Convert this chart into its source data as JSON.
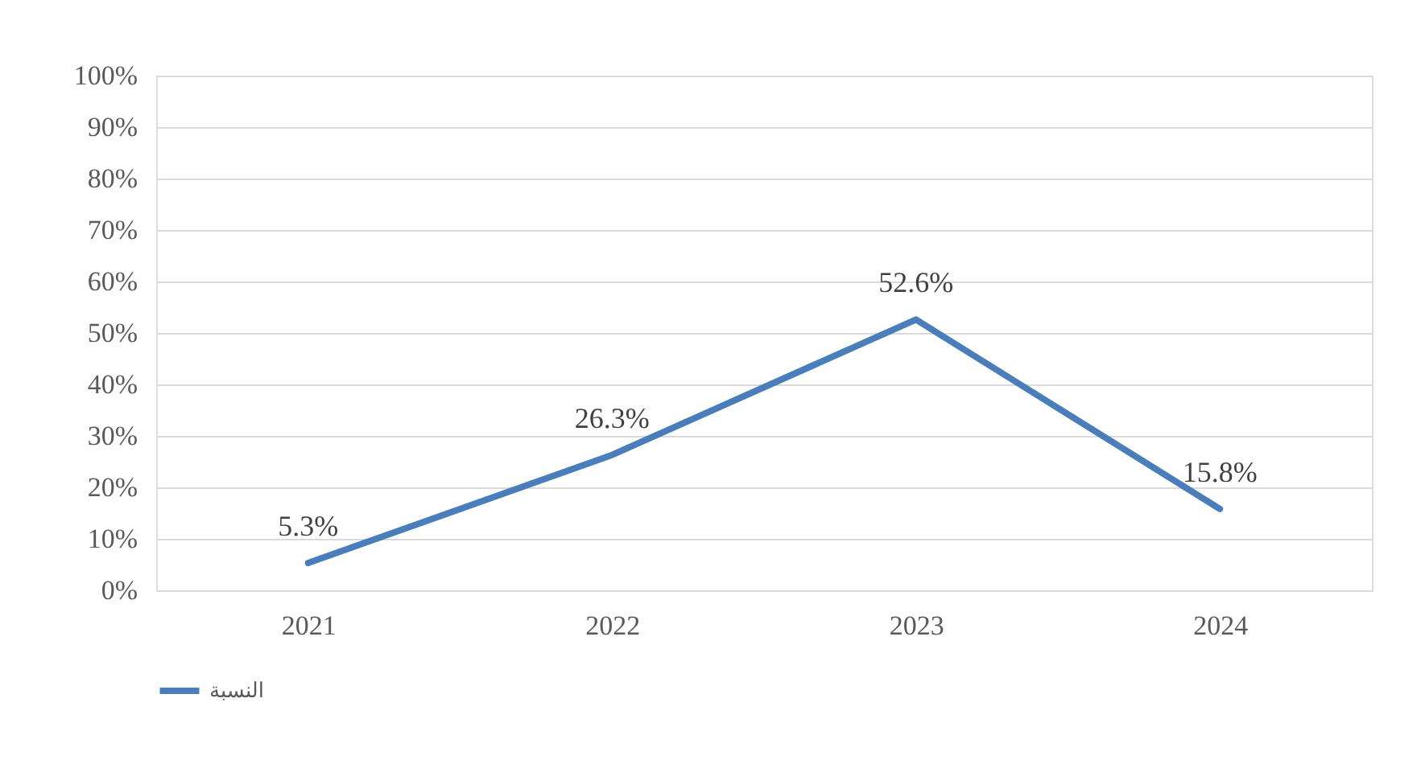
{
  "chart_data": {
    "type": "line",
    "categories": [
      "2021",
      "2022",
      "2023",
      "2024"
    ],
    "series": [
      {
        "name": "النسبة",
        "color": "#4a7ebb",
        "values": [
          5.3,
          26.3,
          52.6,
          15.8
        ],
        "value_labels": [
          "5.3%",
          "26.3%",
          "52.6%",
          "15.8%"
        ]
      }
    ],
    "ylim": [
      0,
      100
    ],
    "yticks": [
      {
        "value": 0,
        "label": "0%"
      },
      {
        "value": 10,
        "label": "10%"
      },
      {
        "value": 20,
        "label": "20%"
      },
      {
        "value": 30,
        "label": "30%"
      },
      {
        "value": 40,
        "label": "40%"
      },
      {
        "value": 50,
        "label": "50%"
      },
      {
        "value": 60,
        "label": "60%"
      },
      {
        "value": 70,
        "label": "70%"
      },
      {
        "value": 80,
        "label": "80%"
      },
      {
        "value": 90,
        "label": "90%"
      },
      {
        "value": 100,
        "label": "100%"
      }
    ],
    "grid": "y",
    "legend": "bottom",
    "marker": "none",
    "line_style": "solid"
  }
}
